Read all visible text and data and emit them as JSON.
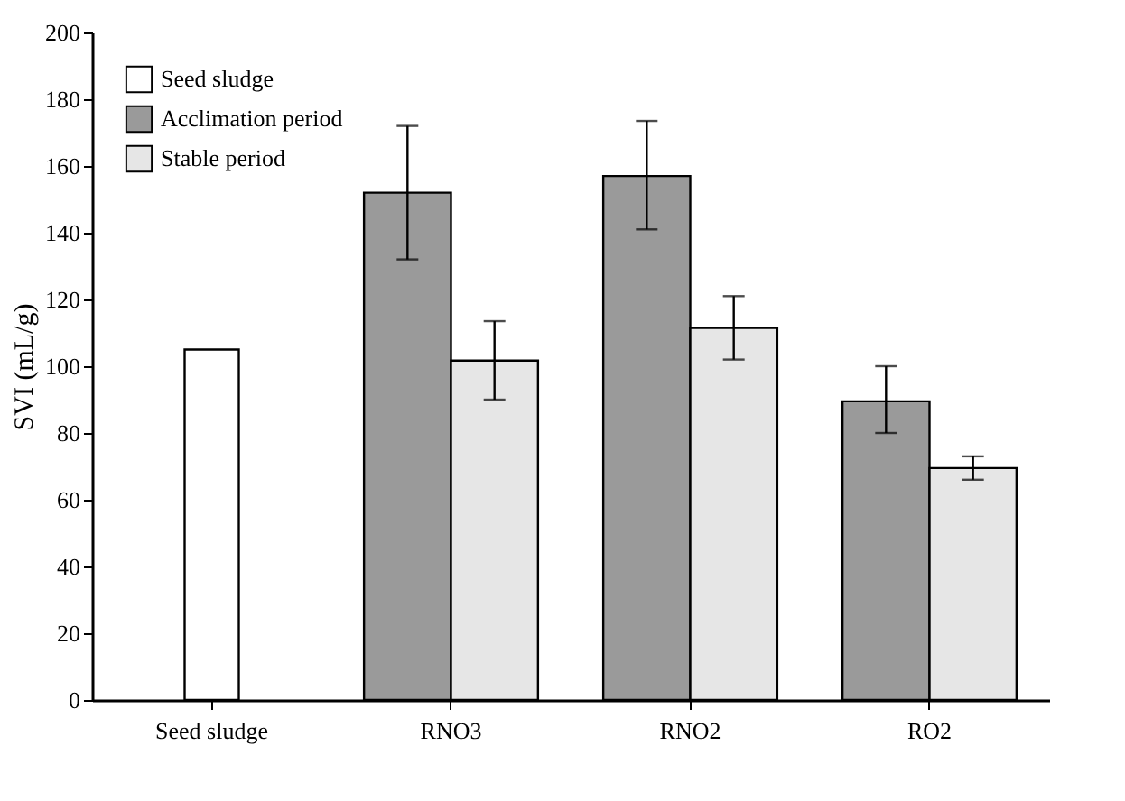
{
  "chart_data": {
    "type": "bar",
    "ylabel": "SVI (mL/g)",
    "categories": [
      "Seed sludge",
      "RNO3",
      "RNO2",
      "RO2"
    ],
    "series": [
      {
        "name": "Seed sludge",
        "color": "#ffffff",
        "values": [
          105,
          null,
          null,
          null
        ]
      },
      {
        "name": "Acclimation period",
        "color": "#9a9a9a",
        "values": [
          null,
          152,
          157,
          89.5
        ],
        "errors": [
          null,
          [
            132,
            172
          ],
          [
            141,
            173.5
          ],
          [
            80,
            100
          ]
        ]
      },
      {
        "name": "Stable period",
        "color": "#e6e6e6",
        "values": [
          null,
          101.7,
          111.5,
          69.5
        ],
        "errors": [
          null,
          [
            90,
            113.5
          ],
          [
            102,
            121
          ],
          [
            66,
            73
          ]
        ]
      }
    ],
    "ylim": [
      0,
      200
    ],
    "yticks": [
      0,
      20,
      40,
      60,
      80,
      100,
      120,
      140,
      160,
      180,
      200
    ],
    "grid": false,
    "legend": "top left"
  }
}
